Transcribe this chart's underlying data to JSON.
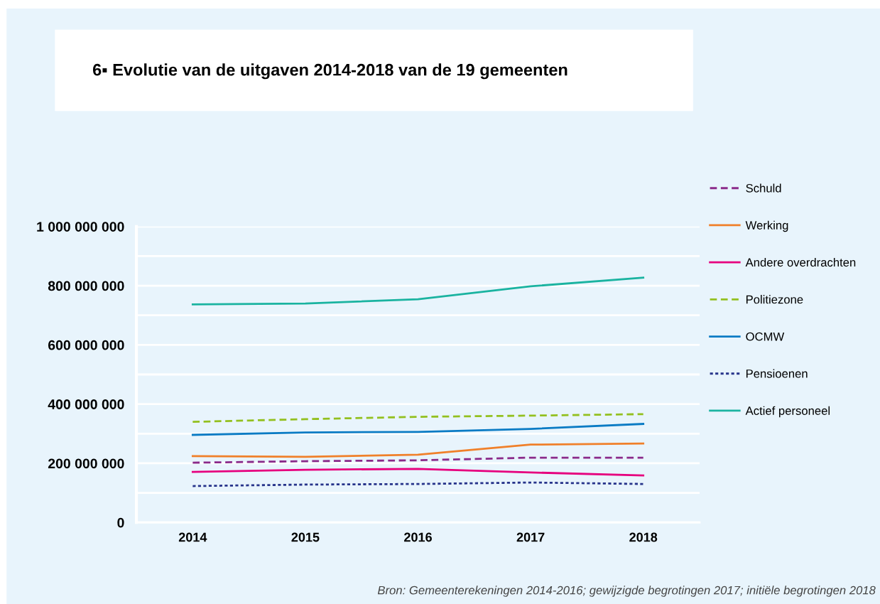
{
  "chart_data": {
    "type": "line",
    "title": "6▪ Evolutie van de uitgaven 2014-2018 van de 19 gemeenten",
    "categories": [
      "2014",
      "2015",
      "2016",
      "2017",
      "2018"
    ],
    "series": [
      {
        "name": "Schuld",
        "color": "#8a2a8a",
        "line_style": "dashed",
        "values": [
          202000000,
          207000000,
          210000000,
          219000000,
          219000000
        ]
      },
      {
        "name": "Werking",
        "color": "#f0802a",
        "line_style": "solid",
        "values": [
          224000000,
          222000000,
          229000000,
          263000000,
          267000000
        ]
      },
      {
        "name": "Andere overdrachten",
        "color": "#e6007e",
        "line_style": "solid",
        "values": [
          171000000,
          178000000,
          181000000,
          169000000,
          159000000
        ]
      },
      {
        "name": "Politiezone",
        "color": "#93c01f",
        "line_style": "dashed",
        "values": [
          340000000,
          349000000,
          357000000,
          361000000,
          366000000
        ]
      },
      {
        "name": "OCMW",
        "color": "#0a7bc4",
        "line_style": "solid",
        "values": [
          296000000,
          304000000,
          306000000,
          316000000,
          333000000
        ]
      },
      {
        "name": "Pensioenen",
        "color": "#27348b",
        "line_style": "dotted",
        "values": [
          123000000,
          128000000,
          130000000,
          135000000,
          130000000
        ]
      },
      {
        "name": "Actief personeel",
        "color": "#1ab3a0",
        "line_style": "solid",
        "values": [
          737000000,
          740000000,
          754000000,
          798000000,
          827000000
        ]
      }
    ],
    "ylim": [
      0,
      1000000000
    ],
    "yticks": [
      {
        "value": 0,
        "label": "0"
      },
      {
        "value": 100000000,
        "label": null
      },
      {
        "value": 200000000,
        "label": "200 000 000"
      },
      {
        "value": 300000000,
        "label": null
      },
      {
        "value": 400000000,
        "label": "400 000 000"
      },
      {
        "value": 500000000,
        "label": null
      },
      {
        "value": 600000000,
        "label": "600 000 000"
      },
      {
        "value": 700000000,
        "label": null
      },
      {
        "value": 800000000,
        "label": "800 000 000"
      },
      {
        "value": 900000000,
        "label": null
      },
      {
        "value": 1000000000,
        "label": "1 000 000 000"
      }
    ],
    "grid": "y",
    "legend": "right",
    "marker": "none",
    "annotations": [
      "Bron: Gemeenterekeningen 2014-2016; gewijzigde begrotingen 2017; initiële begrotingen 2018"
    ]
  }
}
